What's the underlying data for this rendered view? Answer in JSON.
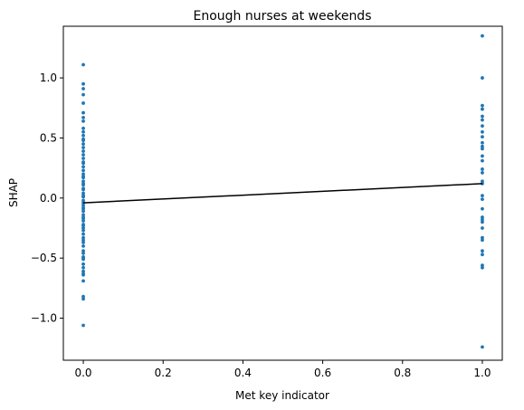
{
  "chart_data": {
    "type": "scatter",
    "title": "Enough nurses at weekends",
    "xlabel": "Met key indicator",
    "ylabel": "SHAP",
    "xlim": [
      -0.05,
      1.05
    ],
    "ylim": [
      -1.35,
      1.43
    ],
    "x_ticks": [
      0.0,
      0.2,
      0.4,
      0.6,
      0.8,
      1.0
    ],
    "x_tick_labels": [
      "0.0",
      "0.2",
      "0.4",
      "0.6",
      "0.8",
      "1.0"
    ],
    "y_ticks": [
      -1.0,
      -0.5,
      0.0,
      0.5,
      1.0
    ],
    "y_tick_labels": [
      "−1.0",
      "−0.5",
      "0.0",
      "0.5",
      "1.0"
    ],
    "grid": false,
    "point_color": "#1f77b4",
    "line_color": "#000000",
    "series": [
      {
        "x": [
          0,
          0,
          0,
          0,
          0,
          0,
          0,
          0,
          0,
          0,
          0,
          0,
          0,
          0,
          0,
          0,
          0,
          0,
          0,
          0,
          0,
          0,
          0,
          0,
          0,
          0,
          0,
          0,
          0,
          0,
          0,
          0,
          0,
          0,
          0,
          0,
          0,
          0,
          0,
          0,
          0,
          0,
          0,
          0,
          0,
          0,
          0,
          0,
          0,
          0,
          0,
          0,
          0,
          0,
          0,
          0,
          0,
          0,
          0,
          0,
          0,
          0,
          0,
          0,
          0,
          0
        ],
        "y": [
          1.11,
          0.95,
          0.91,
          0.86,
          0.79,
          0.71,
          0.67,
          0.64,
          0.58,
          0.55,
          0.52,
          0.49,
          0.45,
          0.39,
          0.36,
          0.33,
          0.29,
          0.26,
          0.23,
          0.2,
          0.17,
          0.14,
          0.11,
          0.08,
          0.04,
          0.01,
          -0.02,
          -0.04,
          -0.06,
          -0.08,
          -0.11,
          -0.14,
          -0.17,
          -0.19,
          -0.22,
          -0.25,
          -0.27,
          -0.3,
          -0.33,
          -0.37,
          -0.4,
          -0.44,
          -0.46,
          -0.49,
          -0.51,
          -0.55,
          -0.58,
          -0.61,
          -0.64,
          -0.69,
          -0.82,
          -0.84,
          -1.06,
          0.07,
          -0.09,
          -0.35,
          0.3,
          0.48,
          -0.23,
          0.12,
          -0.5,
          0.18,
          -0.16,
          0.42,
          -0.63,
          0.02
        ]
      },
      {
        "x": [
          1,
          1,
          1,
          1,
          1,
          1,
          1,
          1,
          1,
          1,
          1,
          1,
          1,
          1,
          1,
          1,
          1,
          1,
          1,
          1,
          1,
          1,
          1,
          1,
          1,
          1,
          1,
          1,
          1,
          1,
          1,
          1
        ],
        "y": [
          1.35,
          1.0,
          0.77,
          0.74,
          0.68,
          0.65,
          0.6,
          0.55,
          0.51,
          0.46,
          0.41,
          0.35,
          0.24,
          0.21,
          0.14,
          0.12,
          0.02,
          -0.01,
          -0.09,
          -0.16,
          -0.2,
          -0.25,
          -0.33,
          -0.35,
          -0.44,
          -0.47,
          -0.56,
          -0.58,
          -1.24,
          0.43,
          -0.18,
          0.31
        ]
      }
    ],
    "trend_line": {
      "x": [
        0.0,
        1.0
      ],
      "y": [
        -0.04,
        0.12
      ]
    }
  }
}
